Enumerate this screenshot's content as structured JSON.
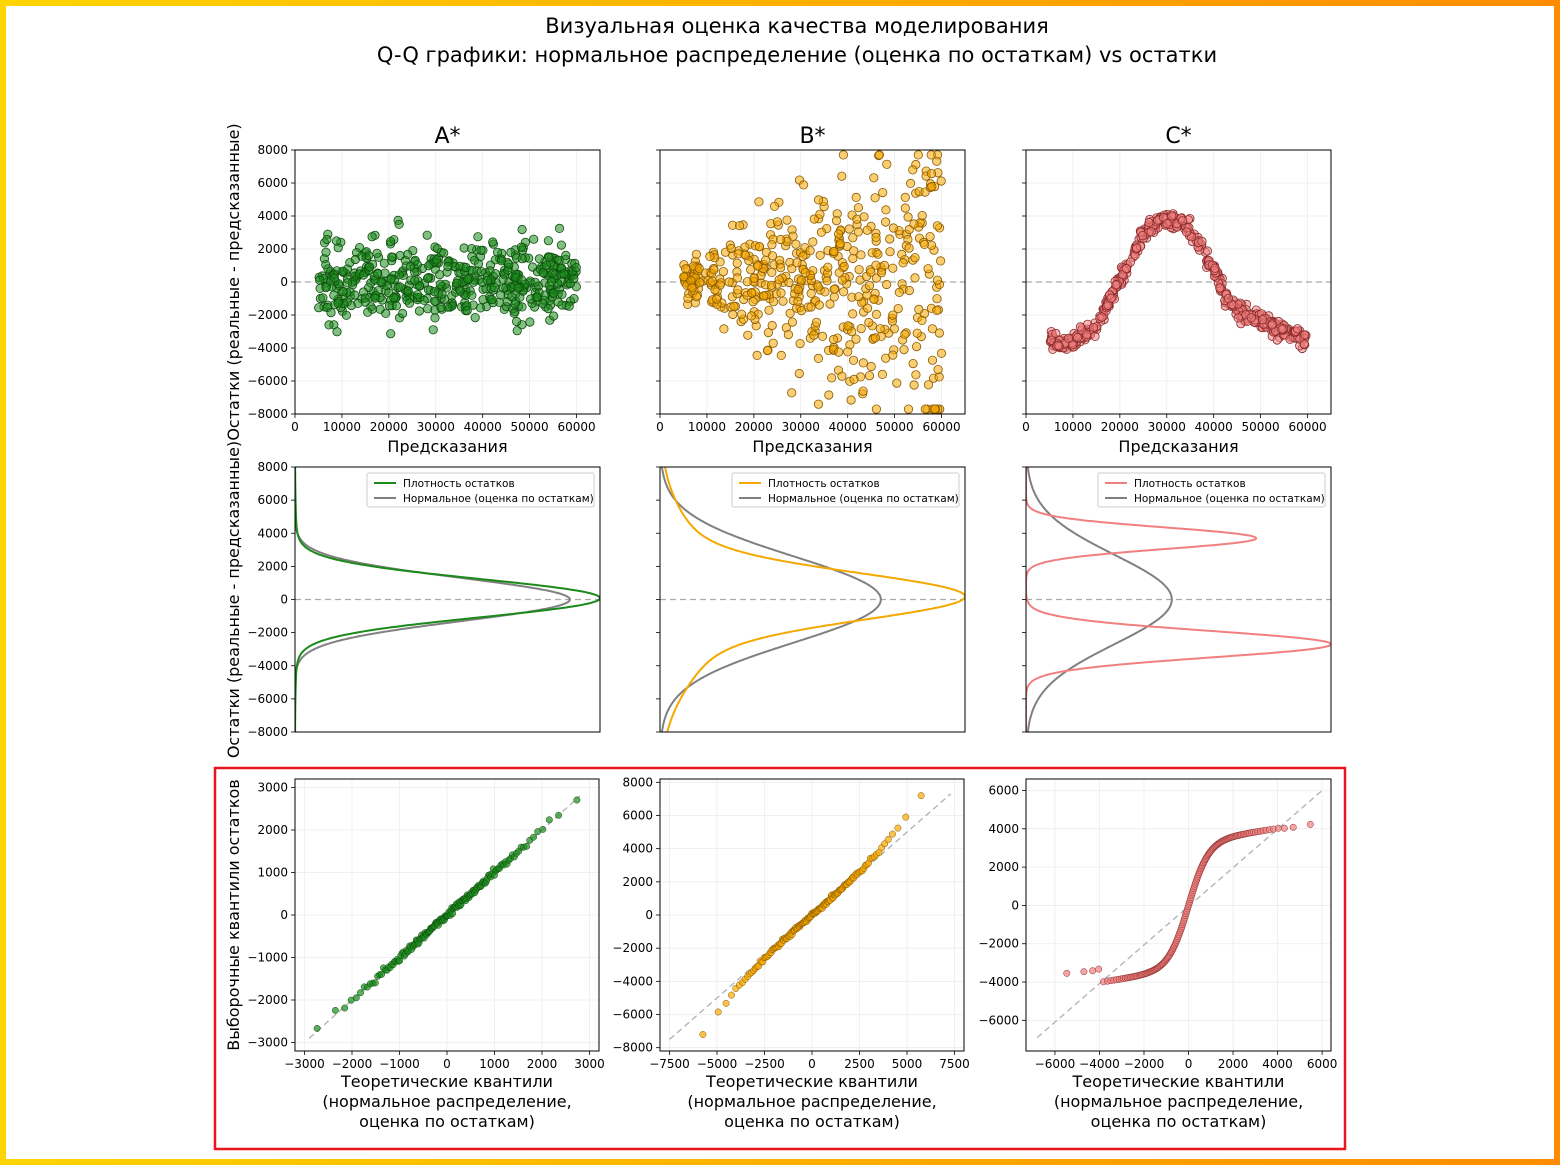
{
  "colors": {
    "frame_gradient": [
      "#ffd400",
      "#ff8c00"
    ],
    "highlight_box": "#e8141e",
    "series": [
      "#1b8a1b",
      "#f5a800",
      "#f08080"
    ],
    "series_edge": [
      "#0d4d0d",
      "#8a5a00",
      "#8a2a2a"
    ],
    "normal": "#808080",
    "zero_line": "#aaaaaa"
  },
  "title": {
    "line1": "Визуальная оценка качества моделирования",
    "line2": "Q-Q графики: нормальное распределение (оценка по остаткам) vs остатки"
  },
  "chart_data": [
    {
      "type": "scatter",
      "row": "residuals",
      "panel": "A*",
      "title": "A*",
      "xlabel": "Предсказания",
      "ylabel": "Остатки (реальные - предсказанные)",
      "xlim": [
        0,
        65000
      ],
      "ylim": [
        -8000,
        8000
      ],
      "xticks": [
        0,
        10000,
        20000,
        30000,
        40000,
        50000,
        60000
      ],
      "yticks": [
        -8000,
        -6000,
        -4000,
        -2000,
        0,
        2000,
        4000,
        6000,
        8000
      ],
      "pattern": "homoscedastic",
      "x_range": [
        5000,
        60000
      ],
      "sd": 1200,
      "n_points": 500
    },
    {
      "type": "scatter",
      "row": "residuals",
      "panel": "B*",
      "title": "B*",
      "xlabel": "Предсказания",
      "ylabel": "",
      "xlim": [
        0,
        65000
      ],
      "ylim": [
        -8000,
        8000
      ],
      "xticks": [
        0,
        10000,
        20000,
        30000,
        40000,
        50000,
        60000
      ],
      "yticks": [
        -8000,
        -6000,
        -4000,
        -2000,
        0,
        2000,
        4000,
        6000,
        8000
      ],
      "pattern": "heteroscedastic",
      "x_range": [
        5000,
        60000
      ],
      "sd_start": 600,
      "sd_end": 5200,
      "n_points": 500
    },
    {
      "type": "scatter",
      "row": "residuals",
      "panel": "C*",
      "title": "C*",
      "xlabel": "Предсказания",
      "ylabel": "",
      "xlim": [
        0,
        65000
      ],
      "ylim": [
        -8000,
        8000
      ],
      "xticks": [
        0,
        10000,
        20000,
        30000,
        40000,
        50000,
        60000
      ],
      "yticks": [
        -8000,
        -6000,
        -4000,
        -2000,
        0,
        2000,
        4000,
        6000,
        8000
      ],
      "pattern": "nonlinear",
      "trend_x": [
        5000,
        10000,
        15000,
        20000,
        25000,
        29000,
        33000,
        37000,
        41000,
        43000,
        48000,
        55000,
        60000
      ],
      "trend_y": [
        -3700,
        -3600,
        -2700,
        200,
        2800,
        3900,
        3700,
        2200,
        200,
        -1300,
        -2100,
        -2900,
        -3700
      ],
      "sd": 250,
      "n_points": 500
    },
    {
      "type": "line",
      "row": "density",
      "panel": "A*",
      "ylabel": "Остатки (реальные - предсказанные)",
      "ylim": [
        -8000,
        8000
      ],
      "yticks": [
        -8000,
        -6000,
        -4000,
        -2000,
        0,
        2000,
        4000,
        6000,
        8000
      ],
      "legend": [
        "Плотность остатков",
        "Нормальное (оценка по остаткам)"
      ],
      "normal_mu": 0,
      "normal_sd": 1300,
      "density_model": "normal_with_tail"
    },
    {
      "type": "line",
      "row": "density",
      "panel": "B*",
      "ylabel": "",
      "ylim": [
        -8000,
        8000
      ],
      "yticks": [
        -8000,
        -6000,
        -4000,
        -2000,
        0,
        2000,
        4000,
        6000,
        8000
      ],
      "legend": [
        "Плотность остатков",
        "Нормальное (оценка по остаткам)"
      ],
      "normal_mu": 0,
      "normal_sd": 2600,
      "density_model": "heavy_tailed"
    },
    {
      "type": "line",
      "row": "density",
      "panel": "C*",
      "ylabel": "",
      "ylim": [
        -8000,
        8000
      ],
      "yticks": [
        -8000,
        -6000,
        -4000,
        -2000,
        0,
        2000,
        4000,
        6000,
        8000
      ],
      "legend": [
        "Плотность остатков",
        "Нормальное (оценка по остаткам)"
      ],
      "normal_mu": 0,
      "normal_sd": 2700,
      "density_model": "bimodal",
      "modes": [
        {
          "mu": 3700,
          "sd": 650,
          "w": 0.38
        },
        {
          "mu": -2700,
          "sd": 800,
          "w": 0.62
        }
      ]
    },
    {
      "type": "scatter",
      "row": "qq",
      "panel": "A*",
      "xlabel": [
        "Теоретические квантили",
        "(нормальное распределение,",
        "оценка по остаткам)"
      ],
      "ylabel": "Выборочные квантили остатков",
      "xlim": [
        -3200,
        3200
      ],
      "ylim": [
        -3200,
        3200
      ],
      "xticks": [
        -3000,
        -2000,
        -1000,
        0,
        1000,
        2000,
        3000
      ],
      "yticks": [
        -3000,
        -2000,
        -1000,
        0,
        1000,
        2000,
        3000
      ],
      "ref_line": [
        [
          -2900,
          -2900
        ],
        [
          2800,
          2800
        ]
      ],
      "sd": 1000,
      "shape": "normal",
      "n_points": 160
    },
    {
      "type": "scatter",
      "row": "qq",
      "panel": "B*",
      "xlabel": [
        "Теоретические квантили",
        "(нормальное распределение,",
        "оценка по остаткам)"
      ],
      "ylabel": "",
      "xlim": [
        -8000,
        8000
      ],
      "ylim": [
        -8200,
        8200
      ],
      "xticks": [
        -7500,
        -5000,
        -2500,
        0,
        2500,
        5000,
        7500
      ],
      "yticks": [
        -8000,
        -6000,
        -4000,
        -2000,
        0,
        2000,
        4000,
        6000,
        8000
      ],
      "ref_line": [
        [
          -7500,
          -7500
        ],
        [
          7300,
          7300
        ]
      ],
      "sd": 2100,
      "shape": "heavy_tails",
      "n_points": 160
    },
    {
      "type": "scatter",
      "row": "qq",
      "panel": "C*",
      "xlabel": [
        "Теоретические квантили",
        "(нормальное распределение,",
        "оценка по остаткам)"
      ],
      "ylabel": "",
      "xlim": [
        -7300,
        6400
      ],
      "ylim": [
        -7600,
        6600
      ],
      "xticks": [
        -6000,
        -4000,
        -2000,
        0,
        2000,
        4000,
        6000
      ],
      "yticks": [
        -6000,
        -4000,
        -2000,
        0,
        2000,
        4000,
        6000
      ],
      "ref_line": [
        [
          -6800,
          -6900
        ],
        [
          6000,
          6000
        ]
      ],
      "sd": 2100,
      "shape": "bimodal",
      "n_points": 160
    }
  ]
}
